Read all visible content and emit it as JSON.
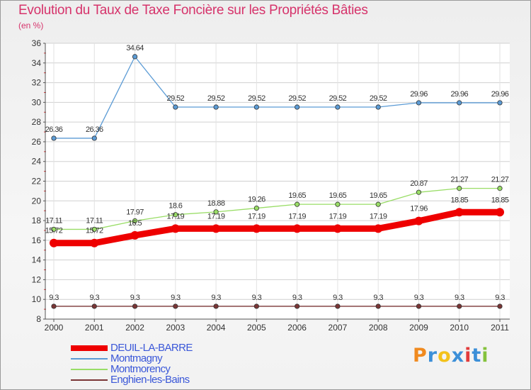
{
  "chart_data": {
    "type": "line",
    "title": "Evolution du Taux de Taxe Foncière sur les Propriétés Bâties",
    "unit_label": "(en %)",
    "x": [
      "2000",
      "2001",
      "2002",
      "2003",
      "2004",
      "2005",
      "2006",
      "2007",
      "2008",
      "2009",
      "2010",
      "2011"
    ],
    "y_ticks": [
      "8",
      "10",
      "12",
      "14",
      "16",
      "18",
      "20",
      "22",
      "24",
      "26",
      "28",
      "30",
      "32",
      "34",
      "36"
    ],
    "ylim": [
      8,
      36
    ],
    "series": [
      {
        "name": "DEUIL-LA-BARRE",
        "color": "#ee0000",
        "values": [
          15.72,
          15.72,
          16.5,
          17.19,
          17.19,
          17.19,
          17.19,
          17.19,
          17.19,
          17.96,
          18.85,
          18.85
        ],
        "labels": [
          "15.72",
          "15.72",
          "16.5",
          "17.19",
          "17.19",
          "17.19",
          "17.19",
          "17.19",
          "17.19",
          "17.96",
          "18.85",
          "18.85"
        ]
      },
      {
        "name": "Montmagny",
        "color": "#5b9bd5",
        "values": [
          26.36,
          26.36,
          34.64,
          29.52,
          29.52,
          29.52,
          29.52,
          29.52,
          29.52,
          29.96,
          29.96,
          29.96
        ],
        "labels": [
          "26.36",
          "26.36",
          "34.64",
          "29.52",
          "29.52",
          "29.52",
          "29.52",
          "29.52",
          "29.52",
          "29.96",
          "29.96",
          "29.96"
        ]
      },
      {
        "name": "Montmorency",
        "color": "#99dd66",
        "values": [
          17.11,
          17.11,
          17.97,
          18.6,
          18.88,
          19.26,
          19.65,
          19.65,
          19.65,
          20.87,
          21.27,
          21.27
        ],
        "labels": [
          "17.11",
          "17.11",
          "17.97",
          "18.6",
          "18.88",
          "19.26",
          "19.65",
          "19.65",
          "19.65",
          "20.87",
          "21.27",
          "21.27"
        ]
      },
      {
        "name": "Enghien-les-Bains",
        "color": "#7a3535",
        "values": [
          9.3,
          9.3,
          9.3,
          9.3,
          9.3,
          9.3,
          9.3,
          9.3,
          9.3,
          9.3,
          9.3,
          9.3
        ],
        "labels": [
          "9.3",
          "9.3",
          "9.3",
          "9.3",
          "9.3",
          "9.3",
          "9.3",
          "9.3",
          "9.3",
          "9.3",
          "9.3",
          "9.3"
        ]
      }
    ]
  },
  "legend": {
    "items": [
      "DEUIL-LA-BARRE",
      "Montmagny",
      "Montmorency",
      "Enghien-les-Bains"
    ]
  },
  "logo": {
    "text": "Proxiti"
  }
}
